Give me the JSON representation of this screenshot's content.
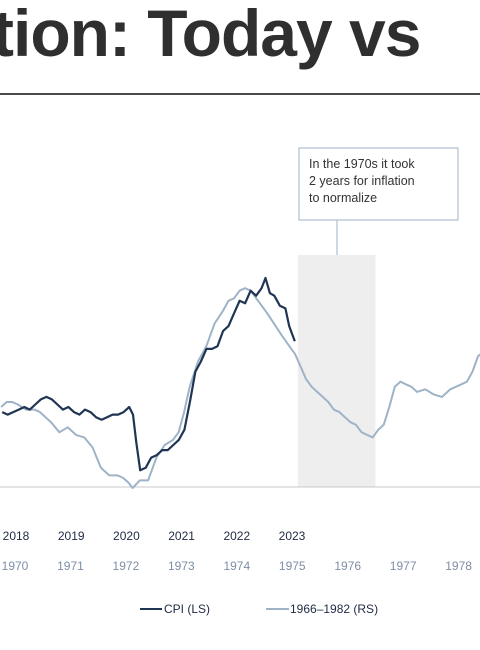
{
  "title": "tion: Today vs",
  "annotation": {
    "lines": [
      "In the 1970s it took",
      "2 years for inflation",
      "to normalize"
    ]
  },
  "colors": {
    "cpi": "#1f3553",
    "historical": "#9fb3c7",
    "shade": "#eeeeee",
    "annotation_border": "#9fb3c7",
    "axis": "#c8c8c8"
  },
  "chart_data": {
    "type": "line",
    "x_axis_primary": {
      "label": "",
      "ticks": [
        "2018",
        "2019",
        "2020",
        "2021",
        "2022",
        "2023"
      ]
    },
    "x_axis_secondary": {
      "label": "",
      "ticks": [
        "1970",
        "1971",
        "1972",
        "1973",
        "1974",
        "1975",
        "1976",
        "1977",
        "1978"
      ]
    },
    "shaded_period": {
      "start": 1975.1,
      "end": 1976.5
    },
    "y_scale": "relative (left/right axes not visible)",
    "y_range": [
      0,
      100
    ],
    "series": [
      {
        "name": "CPI (LS)",
        "axis": "primary",
        "points": [
          [
            2017.75,
            30
          ],
          [
            2017.85,
            29
          ],
          [
            2017.95,
            30
          ],
          [
            2018.05,
            31
          ],
          [
            2018.15,
            32
          ],
          [
            2018.25,
            31
          ],
          [
            2018.35,
            33
          ],
          [
            2018.45,
            35
          ],
          [
            2018.55,
            36
          ],
          [
            2018.65,
            35
          ],
          [
            2018.75,
            33
          ],
          [
            2018.85,
            31
          ],
          [
            2018.95,
            32
          ],
          [
            2019.05,
            30
          ],
          [
            2019.15,
            29
          ],
          [
            2019.25,
            31
          ],
          [
            2019.35,
            30
          ],
          [
            2019.45,
            28
          ],
          [
            2019.55,
            27
          ],
          [
            2019.65,
            28
          ],
          [
            2019.75,
            29
          ],
          [
            2019.85,
            29
          ],
          [
            2019.95,
            30
          ],
          [
            2020.05,
            32
          ],
          [
            2020.12,
            29
          ],
          [
            2020.18,
            18
          ],
          [
            2020.25,
            7
          ],
          [
            2020.35,
            8
          ],
          [
            2020.45,
            12
          ],
          [
            2020.55,
            13
          ],
          [
            2020.65,
            15
          ],
          [
            2020.75,
            15
          ],
          [
            2020.85,
            17
          ],
          [
            2020.95,
            19
          ],
          [
            2021.05,
            23
          ],
          [
            2021.15,
            34
          ],
          [
            2021.25,
            46
          ],
          [
            2021.35,
            50
          ],
          [
            2021.45,
            55
          ],
          [
            2021.55,
            55
          ],
          [
            2021.65,
            56
          ],
          [
            2021.75,
            62
          ],
          [
            2021.85,
            64
          ],
          [
            2021.95,
            69
          ],
          [
            2022.05,
            74
          ],
          [
            2022.15,
            73
          ],
          [
            2022.25,
            78
          ],
          [
            2022.35,
            76
          ],
          [
            2022.45,
            79
          ],
          [
            2022.52,
            83
          ],
          [
            2022.6,
            77
          ],
          [
            2022.68,
            76
          ],
          [
            2022.78,
            72
          ],
          [
            2022.88,
            71
          ],
          [
            2022.95,
            64
          ],
          [
            2023.05,
            58
          ]
        ]
      },
      {
        "name": "1966–1982 (RS)",
        "axis": "secondary",
        "points": [
          [
            1969.75,
            32
          ],
          [
            1969.85,
            34
          ],
          [
            1969.95,
            34
          ],
          [
            1970.05,
            33
          ],
          [
            1970.2,
            31
          ],
          [
            1970.35,
            31
          ],
          [
            1970.45,
            30
          ],
          [
            1970.55,
            28
          ],
          [
            1970.65,
            26
          ],
          [
            1970.8,
            22
          ],
          [
            1970.95,
            24
          ],
          [
            1971.1,
            21
          ],
          [
            1971.25,
            20
          ],
          [
            1971.4,
            16
          ],
          [
            1971.55,
            8
          ],
          [
            1971.7,
            5
          ],
          [
            1971.85,
            5
          ],
          [
            1971.95,
            4
          ],
          [
            1972.05,
            2
          ],
          [
            1972.12,
            0
          ],
          [
            1972.25,
            3
          ],
          [
            1972.4,
            3
          ],
          [
            1972.55,
            12
          ],
          [
            1972.7,
            17
          ],
          [
            1972.85,
            19
          ],
          [
            1972.95,
            22
          ],
          [
            1973.05,
            30
          ],
          [
            1973.15,
            40
          ],
          [
            1973.3,
            50
          ],
          [
            1973.45,
            56
          ],
          [
            1973.6,
            65
          ],
          [
            1973.75,
            70
          ],
          [
            1973.85,
            74
          ],
          [
            1973.95,
            75
          ],
          [
            1974.05,
            78
          ],
          [
            1974.15,
            79
          ],
          [
            1974.25,
            78
          ],
          [
            1974.35,
            75
          ],
          [
            1974.45,
            72
          ],
          [
            1974.55,
            69
          ],
          [
            1974.7,
            64
          ],
          [
            1974.82,
            60
          ],
          [
            1974.95,
            56
          ],
          [
            1975.05,
            53
          ],
          [
            1975.15,
            48
          ],
          [
            1975.25,
            43
          ],
          [
            1975.35,
            40
          ],
          [
            1975.45,
            38
          ],
          [
            1975.55,
            36
          ],
          [
            1975.65,
            34
          ],
          [
            1975.75,
            31
          ],
          [
            1975.85,
            30
          ],
          [
            1975.95,
            28
          ],
          [
            1976.05,
            26
          ],
          [
            1976.15,
            25
          ],
          [
            1976.25,
            22
          ],
          [
            1976.35,
            21
          ],
          [
            1976.45,
            20
          ],
          [
            1976.55,
            23
          ],
          [
            1976.65,
            25
          ],
          [
            1976.75,
            32
          ],
          [
            1976.85,
            40
          ],
          [
            1976.95,
            42
          ],
          [
            1977.05,
            41
          ],
          [
            1977.15,
            40
          ],
          [
            1977.25,
            38
          ],
          [
            1977.4,
            39
          ],
          [
            1977.55,
            37
          ],
          [
            1977.7,
            36
          ],
          [
            1977.85,
            39
          ],
          [
            1977.95,
            40
          ],
          [
            1978.05,
            41
          ],
          [
            1978.15,
            42
          ],
          [
            1978.25,
            46
          ],
          [
            1978.35,
            52
          ],
          [
            1978.45,
            54
          ],
          [
            1978.55,
            58
          ],
          [
            1978.65,
            65
          ]
        ]
      }
    ],
    "legend": {
      "placement": "bottom-center",
      "entries": [
        "CPI (LS)",
        "1966–1982 (RS)"
      ]
    },
    "grid": false
  }
}
